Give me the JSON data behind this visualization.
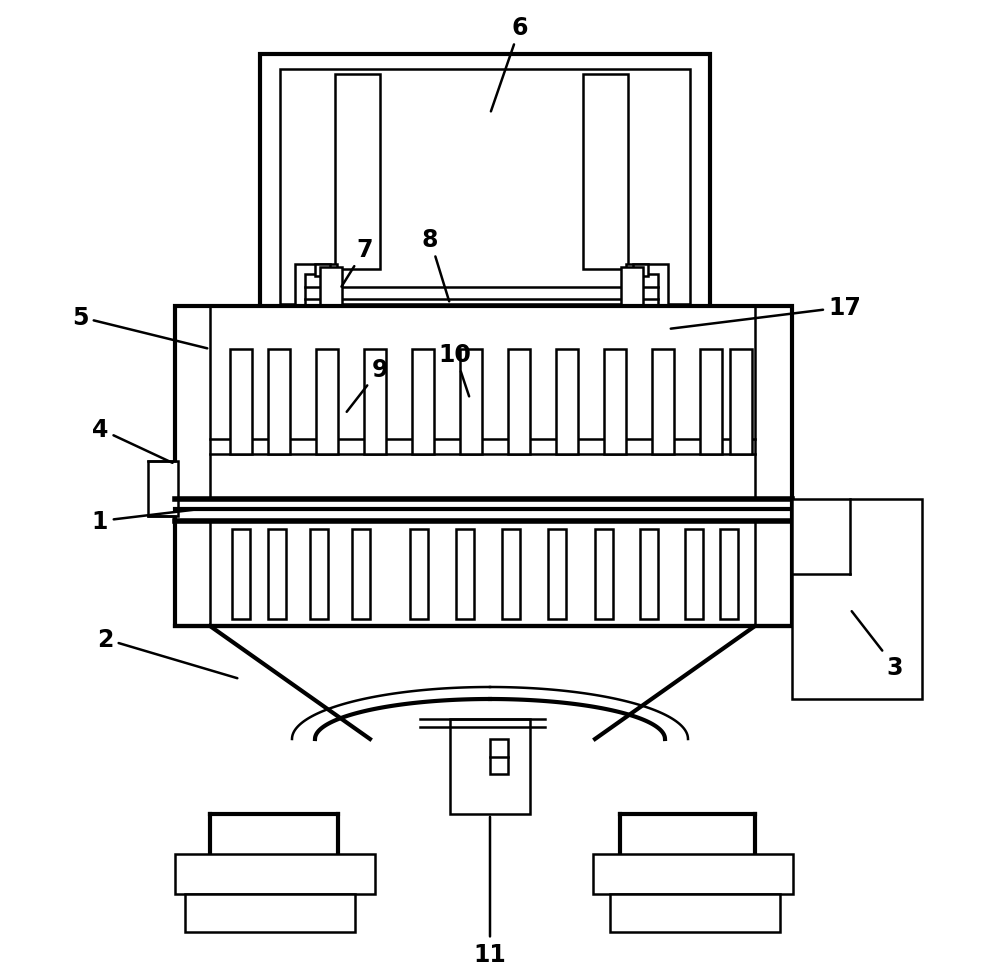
{
  "fig_width": 10.04,
  "fig_height": 9.79,
  "bg_color": "#ffffff",
  "line_color": "#000000",
  "lw": 1.8,
  "tlw": 3.0
}
